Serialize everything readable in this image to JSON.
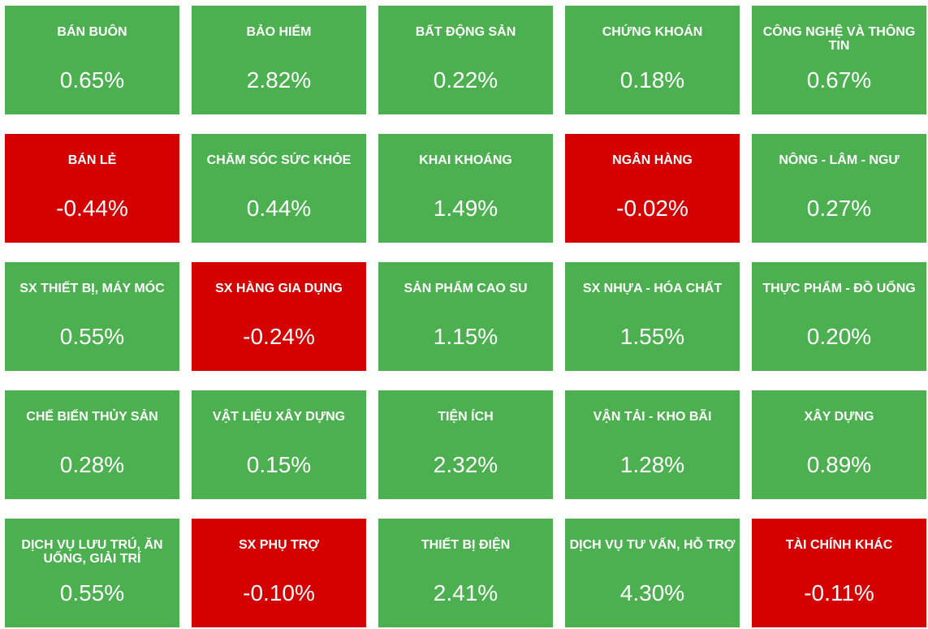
{
  "chart_data": {
    "type": "heatmap",
    "title": "",
    "colors": {
      "positive": "#4caf50",
      "negative": "#d40000",
      "text": "#ffffff"
    },
    "columns": 5,
    "sectors": [
      {
        "name": "BÁN BUÔN",
        "value": "0.65%",
        "change": 0.65
      },
      {
        "name": "BẢO HIỂM",
        "value": "2.82%",
        "change": 2.82
      },
      {
        "name": "BẤT ĐỘNG SẢN",
        "value": "0.22%",
        "change": 0.22
      },
      {
        "name": "CHỨNG KHOÁN",
        "value": "0.18%",
        "change": 0.18
      },
      {
        "name": "CÔNG NGHỆ VÀ THÔNG TIN",
        "value": "0.67%",
        "change": 0.67
      },
      {
        "name": "BÁN LẺ",
        "value": "-0.44%",
        "change": -0.44
      },
      {
        "name": "CHĂM SÓC SỨC KHỎE",
        "value": "0.44%",
        "change": 0.44
      },
      {
        "name": "KHAI KHOÁNG",
        "value": "1.49%",
        "change": 1.49
      },
      {
        "name": "NGÂN HÀNG",
        "value": "-0.02%",
        "change": -0.02
      },
      {
        "name": "NÔNG - LÂM - NGƯ",
        "value": "0.27%",
        "change": 0.27
      },
      {
        "name": "SX THIẾT BỊ, MÁY MÓC",
        "value": "0.55%",
        "change": 0.55
      },
      {
        "name": "SX HÀNG GIA DỤNG",
        "value": "-0.24%",
        "change": -0.24
      },
      {
        "name": "SẢN PHẨM CAO SU",
        "value": "1.15%",
        "change": 1.15
      },
      {
        "name": "SX NHỰA - HÓA CHẤT",
        "value": "1.55%",
        "change": 1.55
      },
      {
        "name": "THỰC PHẨM - ĐỒ UỐNG",
        "value": "0.20%",
        "change": 0.2
      },
      {
        "name": "CHẾ BIẾN THỦY SẢN",
        "value": "0.28%",
        "change": 0.28
      },
      {
        "name": "VẬT LIỆU XÂY DỰNG",
        "value": "0.15%",
        "change": 0.15
      },
      {
        "name": "TIỆN ÍCH",
        "value": "2.32%",
        "change": 2.32
      },
      {
        "name": "VẬN TẢI - KHO BÃI",
        "value": "1.28%",
        "change": 1.28
      },
      {
        "name": "XÂY DỰNG",
        "value": "0.89%",
        "change": 0.89
      },
      {
        "name": "DỊCH VỤ LƯU TRÚ, ĂN UỐNG, GIẢI TRÍ",
        "value": "0.55%",
        "change": 0.55
      },
      {
        "name": "SX PHỤ TRỢ",
        "value": "-0.10%",
        "change": -0.1
      },
      {
        "name": "THIẾT BỊ ĐIỆN",
        "value": "2.41%",
        "change": 2.41
      },
      {
        "name": "DỊCH VỤ TƯ VẤN, HỖ TRỢ",
        "value": "4.30%",
        "change": 4.3
      },
      {
        "name": "TÀI CHÍNH KHÁC",
        "value": "-0.11%",
        "change": -0.11
      }
    ]
  }
}
